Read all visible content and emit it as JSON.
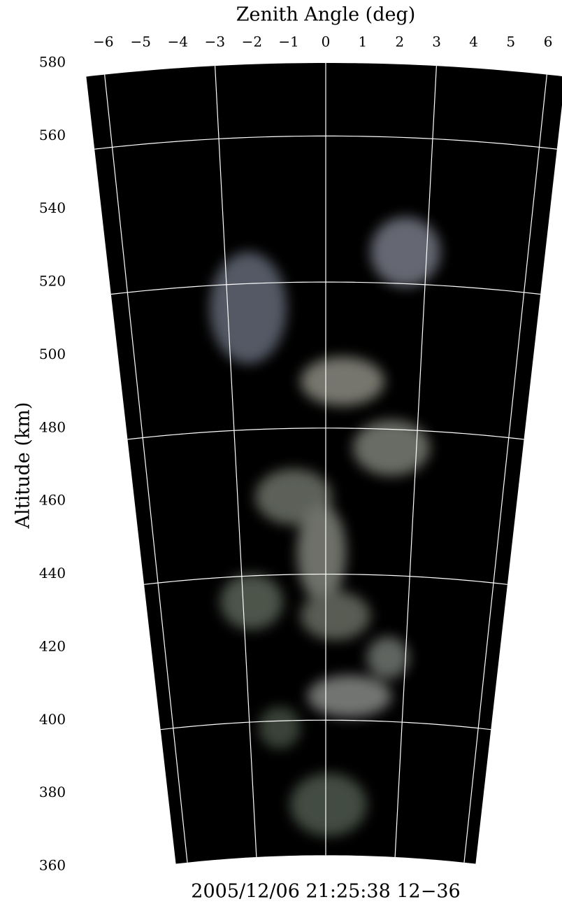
{
  "chart_data": {
    "type": "fan",
    "title": "Zenith Angle (deg)",
    "ylabel": "Altitude (km)",
    "caption": "2005/12/06 21:25:38 12−36",
    "xlim": [
      -6.5,
      6.5
    ],
    "xticks": [
      {
        "value": -6,
        "label": "−6"
      },
      {
        "value": -5,
        "label": "−5"
      },
      {
        "value": -4,
        "label": "−4"
      },
      {
        "value": -3,
        "label": "−3"
      },
      {
        "value": -2,
        "label": "−2"
      },
      {
        "value": -1,
        "label": "−1"
      },
      0,
      1,
      2,
      3,
      4,
      5,
      6
    ],
    "ylim": [
      360,
      580
    ],
    "yticks": [
      360,
      380,
      400,
      420,
      440,
      460,
      480,
      500,
      520,
      540,
      560,
      580
    ],
    "rlim": [
      363,
      580
    ],
    "range_rings": [
      400,
      440,
      480,
      520,
      560
    ],
    "radial_lines": [
      -6,
      -3,
      0,
      3,
      6
    ],
    "background": "#000000",
    "grid_color": "#ffffff"
  }
}
